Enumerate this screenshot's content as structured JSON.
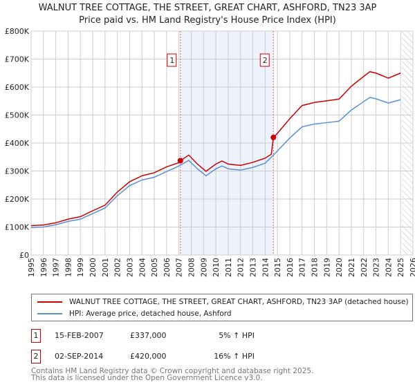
{
  "chart_data": {
    "type": "line",
    "title": "WALNUT TREE COTTAGE, THE STREET, GREAT CHART, ASHFORD, TN23 3AP",
    "subtitle": "Price paid vs. HM Land Registry's House Price Index (HPI)",
    "xlim": [
      1995,
      2026
    ],
    "ylim": [
      0,
      800000
    ],
    "yticks": [
      0,
      100000,
      200000,
      300000,
      400000,
      500000,
      600000,
      700000,
      800000
    ],
    "ytick_labels": [
      "£0",
      "£100K",
      "£200K",
      "£300K",
      "£400K",
      "£500K",
      "£600K",
      "£700K",
      "£800K"
    ],
    "xticks": [
      "1995",
      "1996",
      "1997",
      "1998",
      "1999",
      "2000",
      "2001",
      "2002",
      "2003",
      "2004",
      "2005",
      "2006",
      "2007",
      "2008",
      "2009",
      "2010",
      "2011",
      "2012",
      "2013",
      "2014",
      "2015",
      "2016",
      "2017",
      "2018",
      "2019",
      "2020",
      "2021",
      "2022",
      "2023",
      "2024",
      "2025",
      "2026"
    ],
    "grid": true,
    "forecast_start": 2025.1,
    "shaded_range": [
      2007.12,
      2014.67
    ],
    "series": [
      {
        "name": "WALNUT TREE COTTAGE, THE STREET, GREAT CHART, ASHFORD, TN23 3AP (detached house)",
        "color": "#cc0000",
        "x": [
          1995,
          1996,
          1997,
          1998,
          1999,
          2000,
          2001,
          2002,
          2003,
          2004,
          2005,
          2006,
          2007,
          2007.12,
          2007.8,
          2008.5,
          2009.2,
          2010,
          2010.5,
          2011,
          2012,
          2013,
          2014,
          2014.5,
          2014.67,
          2015,
          2016,
          2017,
          2018,
          2019,
          2020,
          2020.5,
          2021,
          2022,
          2022.5,
          2023,
          2024,
          2025
        ],
        "y": [
          105000,
          107000,
          115000,
          128000,
          137000,
          158000,
          178000,
          225000,
          262000,
          283000,
          294000,
          315000,
          330000,
          337000,
          357000,
          325000,
          299000,
          325000,
          336000,
          325000,
          320000,
          331000,
          346000,
          360000,
          420000,
          435000,
          487000,
          534000,
          545000,
          551000,
          557000,
          580000,
          603000,
          638000,
          655000,
          650000,
          632000,
          650000
        ]
      },
      {
        "name": "HPI: Average price, detached house, Ashford",
        "color": "#5b8fd6",
        "x": [
          1995,
          1996,
          1997,
          1998,
          1999,
          2000,
          2001,
          2002,
          2003,
          2004,
          2005,
          2006,
          2007,
          2007.8,
          2008.5,
          2009.2,
          2010,
          2010.5,
          2011,
          2012,
          2013,
          2014,
          2014.7,
          2015,
          2016,
          2017,
          2018,
          2019,
          2020,
          2020.5,
          2021,
          2022,
          2022.5,
          2023,
          2024,
          2025
        ],
        "y": [
          98000,
          100000,
          108000,
          120000,
          128000,
          148000,
          168000,
          212000,
          248000,
          268000,
          278000,
          298000,
          318000,
          338000,
          308000,
          283000,
          308000,
          318000,
          308000,
          303000,
          313000,
          328000,
          358000,
          372000,
          418000,
          458000,
          468000,
          473000,
          478000,
          498000,
          518000,
          548000,
          563000,
          558000,
          543000,
          555000
        ]
      }
    ],
    "markers": [
      {
        "label": "1",
        "x": 2007.12,
        "y": 337000
      },
      {
        "label": "2",
        "x": 2014.67,
        "y": 420000
      }
    ]
  },
  "sales": [
    {
      "num": "1",
      "date": "15-FEB-2007",
      "price": "£337,000",
      "hpi": "5% ↑ HPI"
    },
    {
      "num": "2",
      "date": "02-SEP-2014",
      "price": "£420,000",
      "hpi": "16% ↑ HPI"
    }
  ],
  "footer": [
    "Contains HM Land Registry data © Crown copyright and database right 2025.",
    "This data is licensed under the Open Government Licence v3.0."
  ]
}
